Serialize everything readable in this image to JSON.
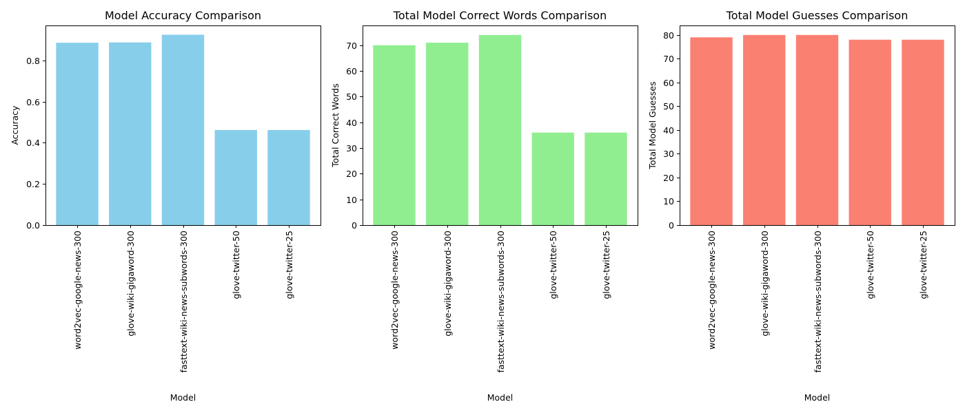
{
  "chart_data": [
    {
      "type": "bar",
      "title": "Model Accuracy Comparison",
      "xlabel": "Model",
      "ylabel": "Accuracy",
      "categories": [
        "word2vec-google-news-300",
        "glove-wiki-gigaword-300",
        "fasttext-wiki-news-subwords-300",
        "glove-twitter-50",
        "glove-twitter-25"
      ],
      "values": [
        0.886,
        0.8875,
        0.925,
        0.462,
        0.462
      ],
      "ylim": [
        0,
        0.97
      ],
      "yticks": [
        0.0,
        0.2,
        0.4,
        0.6,
        0.8
      ],
      "ytick_labels": [
        "0.0",
        "0.2",
        "0.4",
        "0.6",
        "0.8"
      ],
      "color": "#87ceeb",
      "grid": false
    },
    {
      "type": "bar",
      "title": "Total Model Correct Words Comparison",
      "xlabel": "Model",
      "ylabel": "Total Correct Words",
      "categories": [
        "word2vec-google-news-300",
        "glove-wiki-gigaword-300",
        "fasttext-wiki-news-subwords-300",
        "glove-twitter-50",
        "glove-twitter-25"
      ],
      "values": [
        70,
        71,
        74,
        36,
        36
      ],
      "ylim": [
        0,
        77.7
      ],
      "yticks": [
        0,
        10,
        20,
        30,
        40,
        50,
        60,
        70
      ],
      "ytick_labels": [
        "0",
        "10",
        "20",
        "30",
        "40",
        "50",
        "60",
        "70"
      ],
      "color": "#90ee90",
      "grid": false
    },
    {
      "type": "bar",
      "title": "Total Model Guesses Comparison",
      "xlabel": "Model",
      "ylabel": "Total Model Guesses",
      "categories": [
        "word2vec-google-news-300",
        "glove-wiki-gigaword-300",
        "fasttext-wiki-news-subwords-300",
        "glove-twitter-50",
        "glove-twitter-25"
      ],
      "values": [
        79,
        80,
        80,
        78,
        78
      ],
      "ylim": [
        0,
        84
      ],
      "yticks": [
        0,
        10,
        20,
        30,
        40,
        50,
        60,
        70,
        80
      ],
      "ytick_labels": [
        "0",
        "10",
        "20",
        "30",
        "40",
        "50",
        "60",
        "70",
        "80"
      ],
      "color": "#fa8072",
      "grid": false
    }
  ]
}
